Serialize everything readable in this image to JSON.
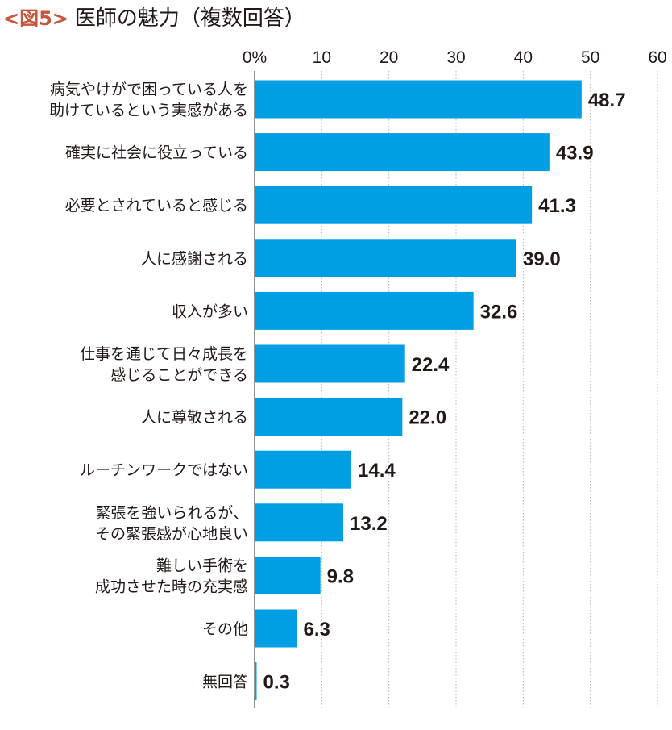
{
  "header": {
    "figure_label": "<図5>",
    "title": "医師の魅力（複数回答）"
  },
  "colors": {
    "bar": "#009fe3",
    "grid": "#b5b5b5",
    "axis": "#6e6e6e",
    "figure_label": "#c8553d",
    "text": "#231815"
  },
  "chart_data": {
    "type": "bar",
    "orientation": "horizontal",
    "title": "医師の魅力（複数回答）",
    "xlim": [
      0,
      60
    ],
    "ticks": [
      0,
      10,
      20,
      30,
      40,
      50,
      60
    ],
    "tick_labels": [
      "0%",
      "10",
      "20",
      "30",
      "40",
      "50",
      "60"
    ],
    "grid": "vertical dotted",
    "categories": [
      [
        "病気やけがで困っている人を",
        "助けているという実感がある"
      ],
      [
        "確実に社会に役立っている"
      ],
      [
        "必要とされていると感じる"
      ],
      [
        "人に感謝される"
      ],
      [
        "収入が多い"
      ],
      [
        "仕事を通じて日々成長を",
        "感じることができる"
      ],
      [
        "人に尊敬される"
      ],
      [
        "ルーチンワークではない"
      ],
      [
        "緊張を強いられるが、",
        "その緊張感が心地良い"
      ],
      [
        "難しい手術を",
        "成功させた時の充実感"
      ],
      [
        "その他"
      ],
      [
        "無回答"
      ]
    ],
    "values": [
      48.7,
      43.9,
      41.3,
      39.0,
      32.6,
      22.4,
      22.0,
      14.4,
      13.2,
      9.8,
      6.3,
      0.3
    ],
    "value_labels": [
      "48.7",
      "43.9",
      "41.3",
      "39.0",
      "32.6",
      "22.4",
      "22.0",
      "14.4",
      "13.2",
      "9.8",
      "6.3",
      "0.3"
    ]
  }
}
